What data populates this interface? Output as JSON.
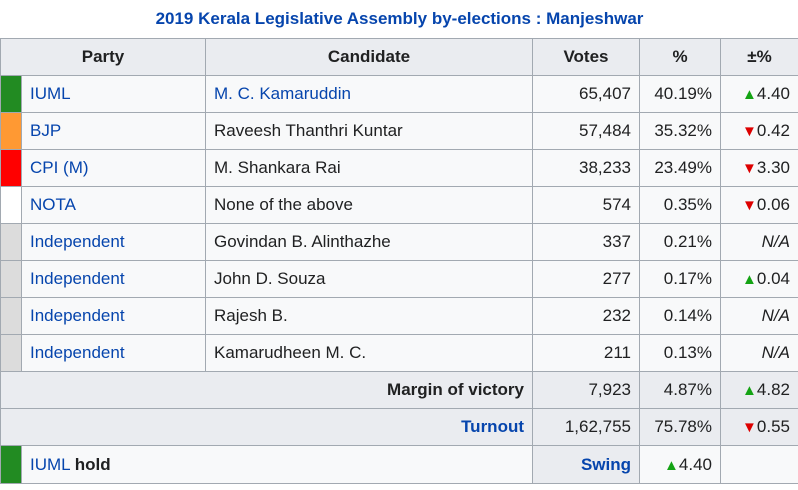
{
  "title": "2019 Kerala Legislative Assembly by-elections : Manjeshwar",
  "headers": {
    "party": "Party",
    "candidate": "Candidate",
    "votes": "Votes",
    "pct": "%",
    "change": "±%"
  },
  "rows": [
    {
      "color": "#228b22",
      "party": "IUML",
      "candidate": "M. C. Kamaruddin",
      "candidate_link": true,
      "votes": "65,407",
      "pct": "40.19%",
      "dir": "up",
      "change": "4.40"
    },
    {
      "color": "#ff9933",
      "party": "BJP",
      "candidate": "Raveesh Thanthri Kuntar",
      "candidate_link": false,
      "votes": "57,484",
      "pct": "35.32%",
      "dir": "down",
      "change": "0.42"
    },
    {
      "color": "#ff0000",
      "party": "CPI (M)",
      "candidate": "M. Shankara Rai",
      "candidate_link": false,
      "votes": "38,233",
      "pct": "23.49%",
      "dir": "down",
      "change": "3.30"
    },
    {
      "color": "#ffffff",
      "party": "NOTA",
      "candidate": "None of the above",
      "candidate_link": false,
      "votes": "574",
      "pct": "0.35%",
      "dir": "down",
      "change": "0.06"
    },
    {
      "color": "#dcdcdc",
      "party": "Independent",
      "candidate": "Govindan B. Alinthazhe",
      "candidate_link": false,
      "votes": "337",
      "pct": "0.21%",
      "dir": "na",
      "change": "N/A"
    },
    {
      "color": "#dcdcdc",
      "party": "Independent",
      "candidate": "John D. Souza",
      "candidate_link": false,
      "votes": "277",
      "pct": "0.17%",
      "dir": "up",
      "change": "0.04"
    },
    {
      "color": "#dcdcdc",
      "party": "Independent",
      "candidate": "Rajesh B.",
      "candidate_link": false,
      "votes": "232",
      "pct": "0.14%",
      "dir": "na",
      "change": "N/A"
    },
    {
      "color": "#dcdcdc",
      "party": "Independent",
      "candidate": "Kamarudheen M. C.",
      "candidate_link": false,
      "votes": "211",
      "pct": "0.13%",
      "dir": "na",
      "change": "N/A"
    }
  ],
  "margin": {
    "label": "Margin of victory",
    "votes": "7,923",
    "pct": "4.87%",
    "change": "4.82"
  },
  "turnout": {
    "label": "Turnout",
    "votes": "1,62,755",
    "pct": "75.78%",
    "change": "0.55"
  },
  "result": {
    "party": "IUML",
    "status": "hold",
    "swing_label": "Swing",
    "swing": "4.40",
    "color": "#228b22"
  },
  "arrows": {
    "up": "▲",
    "down": "▼"
  }
}
